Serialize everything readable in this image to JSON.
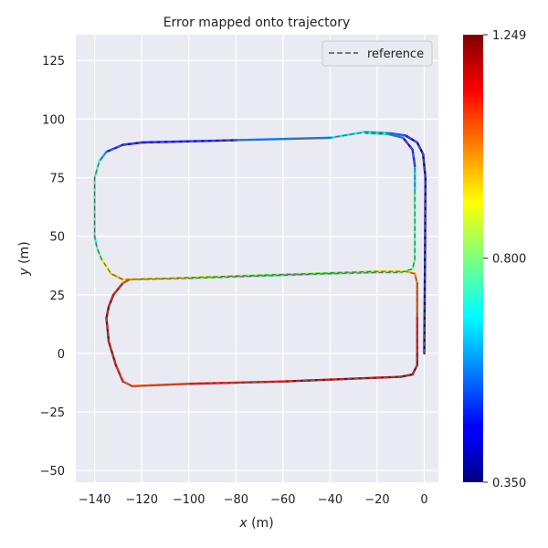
{
  "chart_data": {
    "type": "line",
    "title": "Error mapped onto trajectory",
    "xlabel_var": "x",
    "xlabel_unit": " (m)",
    "ylabel_var": "y",
    "ylabel_unit": " (m)",
    "xlim": [
      -148,
      6
    ],
    "ylim": [
      -55,
      136
    ],
    "xticks": [
      -140,
      -120,
      -100,
      -80,
      -60,
      -40,
      -20,
      0
    ],
    "xtick_labels": [
      "−140",
      "−120",
      "−100",
      "−80",
      "−60",
      "−40",
      "−20",
      "0"
    ],
    "yticks": [
      -50,
      -25,
      0,
      25,
      50,
      75,
      100,
      125
    ],
    "ytick_labels": [
      "−50",
      "−25",
      "0",
      "25",
      "50",
      "75",
      "100",
      "125"
    ],
    "grid": true,
    "legend": {
      "label": "reference",
      "position": "top-right"
    },
    "colorbar": {
      "colormap": "jet",
      "min": 0.35,
      "max": 1.249,
      "tick_values": [
        0.35,
        0.8,
        1.249
      ],
      "tick_labels": [
        "0.350",
        "0.800",
        "1.249"
      ]
    },
    "series": [
      {
        "role": "reference",
        "style": "dashed",
        "color": "#666666",
        "points": [
          [
            0,
            0
          ],
          [
            0.3,
            40
          ],
          [
            0.5,
            75
          ],
          [
            -0.5,
            85
          ],
          [
            -3,
            90
          ],
          [
            -8,
            93
          ],
          [
            -15,
            94
          ],
          [
            -25,
            94.5
          ],
          [
            -40,
            92
          ],
          [
            -80,
            91
          ],
          [
            -120,
            90
          ],
          [
            -128,
            89
          ],
          [
            -135,
            86
          ],
          [
            -138,
            82
          ],
          [
            -140,
            75
          ],
          [
            -140,
            50
          ],
          [
            -139,
            45
          ],
          [
            -137,
            40
          ],
          [
            -133,
            34
          ],
          [
            -128,
            31.5
          ],
          [
            -110,
            32
          ],
          [
            -80,
            33
          ],
          [
            -50,
            34
          ],
          [
            -20,
            35
          ],
          [
            -8,
            35
          ],
          [
            -4,
            34
          ],
          [
            -3,
            30
          ],
          [
            -3,
            15
          ],
          [
            -3,
            0
          ],
          [
            -3,
            -5
          ],
          [
            -5,
            -9
          ],
          [
            -10,
            -10
          ],
          [
            -60,
            -12
          ],
          [
            -100,
            -13
          ],
          [
            -124,
            -14
          ],
          [
            -128,
            -12
          ],
          [
            -131,
            -5
          ],
          [
            -134,
            5
          ],
          [
            -135,
            15
          ],
          [
            -134,
            20
          ],
          [
            -132,
            25
          ],
          [
            -128,
            30
          ],
          [
            -125,
            31.5
          ],
          [
            -100,
            32
          ],
          [
            -70,
            33
          ],
          [
            -40,
            34
          ],
          [
            -20,
            34.5
          ],
          [
            -10,
            34.5
          ],
          [
            -5,
            36
          ],
          [
            -4,
            40
          ],
          [
            -4,
            70
          ],
          [
            -4,
            80
          ],
          [
            -5,
            87
          ],
          [
            -9,
            92
          ],
          [
            -15,
            93.5
          ],
          [
            -25,
            94
          ]
        ]
      },
      {
        "role": "estimate",
        "style": "solid",
        "colored_by": "error",
        "points": [
          [
            0,
            0,
            0.36
          ],
          [
            0.3,
            40,
            0.36
          ],
          [
            0.5,
            75,
            0.37
          ],
          [
            -0.5,
            85,
            0.38
          ],
          [
            -3,
            90,
            0.42
          ],
          [
            -8,
            93,
            0.48
          ],
          [
            -15,
            94,
            0.6
          ],
          [
            -25,
            94.5,
            0.7
          ],
          [
            -40,
            92,
            0.65
          ],
          [
            -80,
            91,
            0.5
          ],
          [
            -120,
            90,
            0.42
          ],
          [
            -128,
            89,
            0.43
          ],
          [
            -135,
            86,
            0.55
          ],
          [
            -138,
            82,
            0.68
          ],
          [
            -140,
            75,
            0.8
          ],
          [
            -140,
            50,
            0.7
          ],
          [
            -139,
            45,
            0.72
          ],
          [
            -137,
            40,
            0.82
          ],
          [
            -133,
            34,
            0.95
          ],
          [
            -128,
            31.5,
            1.0
          ],
          [
            -110,
            32,
            0.88
          ],
          [
            -80,
            33,
            0.82
          ],
          [
            -50,
            34,
            0.8
          ],
          [
            -20,
            35,
            0.85
          ],
          [
            -8,
            35,
            0.95
          ],
          [
            -4,
            34,
            1.0
          ],
          [
            -3,
            30,
            1.02
          ],
          [
            -3,
            15,
            1.12
          ],
          [
            -3,
            0,
            1.2
          ],
          [
            -3,
            -5,
            1.22
          ],
          [
            -5,
            -9,
            1.24
          ],
          [
            -10,
            -10,
            1.24
          ],
          [
            -60,
            -12,
            1.2
          ],
          [
            -100,
            -13,
            1.12
          ],
          [
            -124,
            -14,
            1.05
          ],
          [
            -128,
            -12,
            1.1
          ],
          [
            -131,
            -5,
            1.18
          ],
          [
            -134,
            5,
            1.22
          ],
          [
            -135,
            15,
            1.24
          ],
          [
            -134,
            20,
            1.24
          ],
          [
            -132,
            25,
            1.22
          ],
          [
            -128,
            30,
            1.12
          ],
          [
            -125,
            31.5,
            1.0
          ],
          [
            -100,
            32,
            0.85
          ],
          [
            -70,
            33,
            0.78
          ],
          [
            -40,
            34,
            0.78
          ],
          [
            -20,
            34.5,
            0.8
          ],
          [
            -10,
            34.5,
            0.85
          ],
          [
            -5,
            36,
            0.8
          ],
          [
            -4,
            40,
            0.78
          ],
          [
            -4,
            70,
            0.75
          ],
          [
            -4,
            80,
            0.55
          ],
          [
            -5,
            87,
            0.45
          ],
          [
            -9,
            92,
            0.5
          ],
          [
            -15,
            93.5,
            0.65
          ],
          [
            -25,
            94,
            0.78
          ]
        ]
      }
    ]
  }
}
